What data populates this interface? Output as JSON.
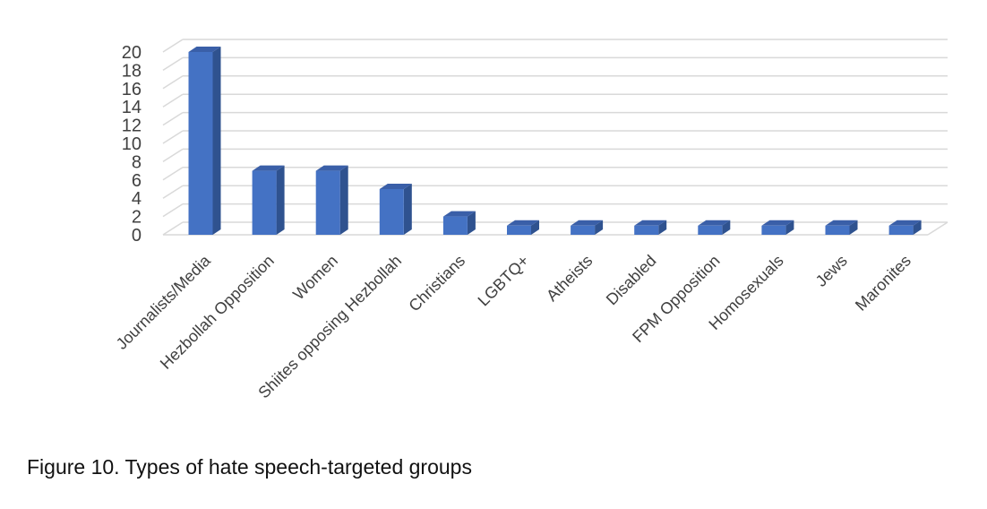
{
  "caption": "Figure 10. Types of hate speech-targeted groups",
  "colors": {
    "bar_front": "#4472c4",
    "bar_side": "#2f528f",
    "bar_top": "#3a5fa8",
    "grid": "#d9d9d9",
    "text": "#404040"
  },
  "chart_data": {
    "type": "bar",
    "title": "",
    "xlabel": "",
    "ylabel": "",
    "ylim": [
      0,
      20
    ],
    "yticks": [
      0,
      2,
      4,
      6,
      8,
      10,
      12,
      14,
      16,
      18,
      20
    ],
    "grid": true,
    "legend": "none",
    "style": "3d-column",
    "categories": [
      "Journalists/Media",
      "Hezbollah Opposition",
      "Women",
      "Shiites opposing Hezbollah",
      "Christians",
      "LGBTQ+",
      "Atheists",
      "Disabled",
      "FPM Opposition",
      "Homosexuals",
      "Jews",
      "Maronites"
    ],
    "values": [
      20,
      7,
      7,
      5,
      2,
      1,
      1,
      1,
      1,
      1,
      1,
      1
    ]
  }
}
